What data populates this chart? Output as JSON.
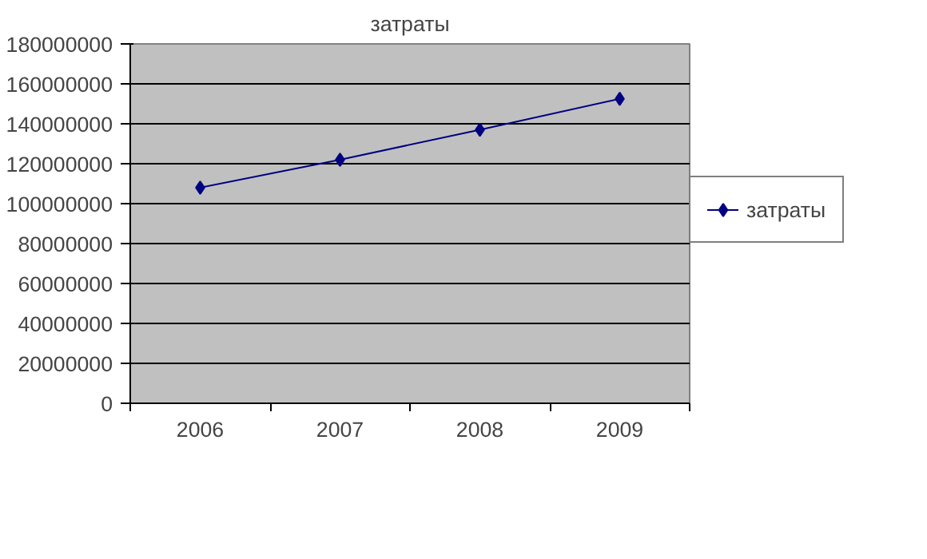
{
  "chart_data": {
    "type": "line",
    "title": "затраты",
    "categories": [
      "2006",
      "2007",
      "2008",
      "2009"
    ],
    "series": [
      {
        "name": "затраты",
        "color": "#000080",
        "values": [
          108000000,
          122000000,
          137000000,
          152500000
        ]
      }
    ],
    "ylim": [
      0,
      180000000
    ],
    "yticks": [
      0,
      20000000,
      40000000,
      60000000,
      80000000,
      100000000,
      120000000,
      140000000,
      160000000,
      180000000
    ],
    "grid": "y",
    "legend": "right",
    "marker": "diamond",
    "line_style": "solid"
  }
}
